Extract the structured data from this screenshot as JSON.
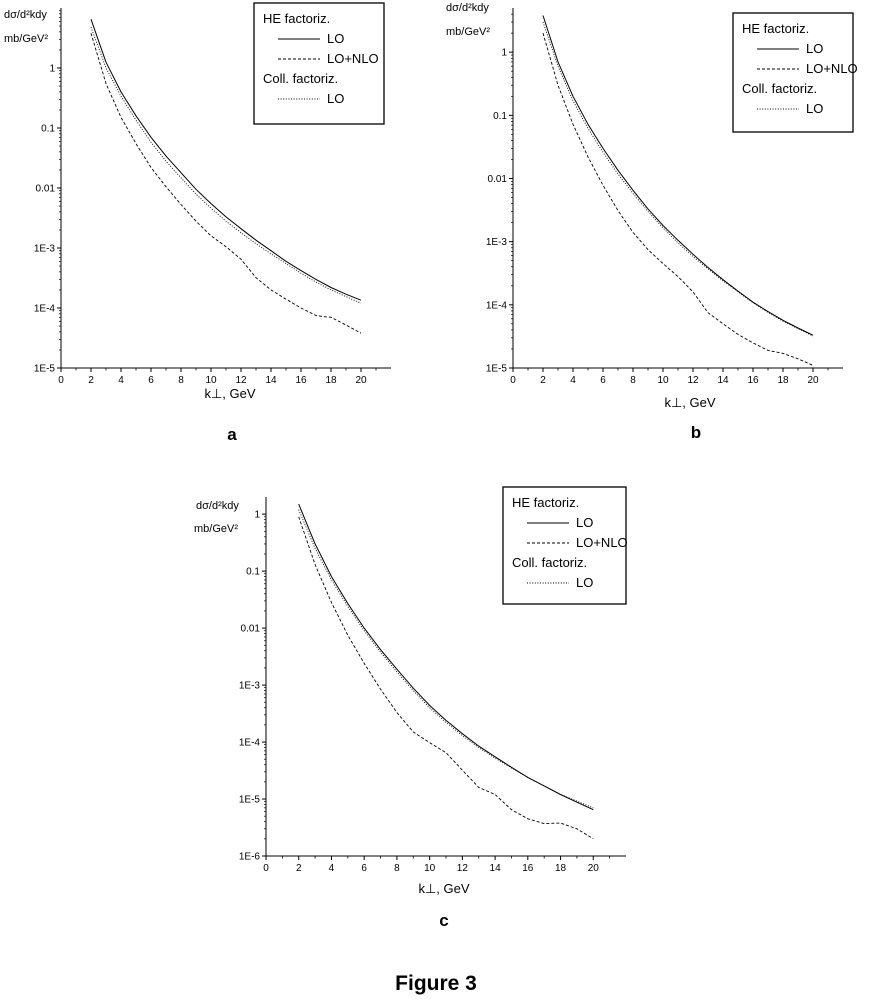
{
  "caption": "Figure 3",
  "chart_data": [
    {
      "panel_label": "a",
      "type": "line",
      "yscale": "log",
      "xlabel": "k⊥, GeV",
      "ylabel": [
        "dσ/d²kdy",
        "mb/GeV²"
      ],
      "xlim": [
        0,
        22
      ],
      "xticks": [
        0,
        2,
        4,
        6,
        8,
        10,
        12,
        14,
        16,
        18,
        20
      ],
      "ylim": [
        1e-05,
        10
      ],
      "yticks": [
        1e-05,
        0.0001,
        0.001,
        0.01,
        0.1,
        1
      ],
      "ytick_labels": [
        "1E-5",
        "1E-4",
        "1E-3",
        "0.01",
        "0.1",
        "1"
      ],
      "legend": {
        "position": "top-right",
        "groups": [
          {
            "title": "HE factoriz.",
            "entries": [
              "LO",
              "LO+NLO"
            ]
          },
          {
            "title": "Coll. factoriz.",
            "entries": [
              "LO"
            ]
          }
        ]
      },
      "series": [
        {
          "name": "HE factoriz. LO",
          "style": "solid",
          "x": [
            2,
            3,
            4,
            5,
            6,
            7,
            8,
            9,
            10,
            11,
            12,
            13,
            14,
            15,
            16,
            17,
            18,
            19,
            20
          ],
          "y": [
            6.5,
            1.25,
            0.4,
            0.16,
            0.07,
            0.034,
            0.018,
            0.0095,
            0.0055,
            0.0033,
            0.0021,
            0.00135,
            0.0009,
            0.0006,
            0.00042,
            0.0003,
            0.00022,
            0.00017,
            0.000135
          ]
        },
        {
          "name": "HE factoriz. LO+NLO",
          "style": "dashed",
          "x": [
            2,
            3,
            4,
            5,
            6,
            7,
            8,
            9,
            10,
            11,
            12,
            13,
            14,
            15,
            16,
            17,
            17.5,
            18,
            19,
            20
          ],
          "y": [
            3.8,
            0.55,
            0.15,
            0.055,
            0.022,
            0.0105,
            0.0053,
            0.0028,
            0.0016,
            0.00105,
            0.00065,
            0.00032,
            0.0002,
            0.00014,
            0.0001,
            7.5e-05,
            7.2e-05,
            7e-05,
            5.2e-05,
            3.8e-05
          ]
        },
        {
          "name": "Coll. factoriz. LO",
          "style": "dotted",
          "x": [
            2,
            3,
            4,
            5,
            6,
            7,
            8,
            9,
            10,
            11,
            12,
            13,
            14,
            15,
            16,
            17,
            18,
            19,
            20
          ],
          "y": [
            4.8,
            1.0,
            0.34,
            0.135,
            0.058,
            0.028,
            0.0148,
            0.0079,
            0.0046,
            0.0028,
            0.0018,
            0.00118,
            0.0008,
            0.00055,
            0.00038,
            0.00027,
            0.0002,
            0.000155,
            0.00012
          ]
        }
      ]
    },
    {
      "panel_label": "b",
      "type": "line",
      "yscale": "log",
      "xlabel": "k⊥, GeV",
      "ylabel": [
        "dσ/d²kdy",
        "mb/GeV²"
      ],
      "xlim": [
        0,
        22
      ],
      "xticks": [
        0,
        2,
        4,
        6,
        8,
        10,
        12,
        14,
        16,
        18,
        20
      ],
      "ylim": [
        1e-05,
        5
      ],
      "yticks": [
        1e-05,
        0.0001,
        0.001,
        0.01,
        0.1,
        1
      ],
      "ytick_labels": [
        "1E-5",
        "1E-4",
        "1E-3",
        "0.01",
        "0.1",
        "1"
      ],
      "legend": {
        "position": "top-right",
        "groups": [
          {
            "title": "HE factoriz.",
            "entries": [
              "LO",
              "LO+NLO"
            ]
          },
          {
            "title": "Coll. factoriz.",
            "entries": [
              "LO"
            ]
          }
        ]
      },
      "series": [
        {
          "name": "HE factoriz. LO",
          "style": "solid",
          "x": [
            2,
            3,
            4,
            5,
            6,
            7,
            8,
            9,
            10,
            11,
            12,
            13,
            14,
            15,
            16,
            17,
            18,
            19,
            20
          ],
          "y": [
            3.8,
            0.7,
            0.2,
            0.072,
            0.03,
            0.0135,
            0.0065,
            0.0033,
            0.0018,
            0.00105,
            0.00063,
            0.00039,
            0.00025,
            0.000165,
            0.00011,
            7.8e-05,
            5.7e-05,
            4.3e-05,
            3.3e-05
          ]
        },
        {
          "name": "HE factoriz. LO+NLO",
          "style": "dashed",
          "x": [
            2,
            3,
            4,
            5,
            6,
            7,
            8,
            9,
            10,
            11,
            12,
            13,
            14,
            15,
            16,
            17,
            18,
            19,
            20
          ],
          "y": [
            2.0,
            0.3,
            0.072,
            0.022,
            0.0078,
            0.0031,
            0.0014,
            0.00075,
            0.00045,
            0.00028,
            0.00016,
            7.5e-05,
            5e-05,
            3.4e-05,
            2.5e-05,
            1.9e-05,
            1.7e-05,
            1.4e-05,
            1.1e-05
          ]
        },
        {
          "name": "Coll. factoriz. LO",
          "style": "dotted",
          "x": [
            2,
            3,
            4,
            5,
            6,
            7,
            8,
            9,
            10,
            11,
            12,
            13,
            14,
            15,
            16,
            17,
            18,
            19,
            20
          ],
          "y": [
            3.0,
            0.6,
            0.17,
            0.062,
            0.026,
            0.0118,
            0.0058,
            0.003,
            0.00165,
            0.00096,
            0.00058,
            0.00037,
            0.00024,
            0.00016,
            0.000108,
            7.6e-05,
            5.5e-05,
            4.2e-05,
            3.2e-05
          ]
        }
      ]
    },
    {
      "panel_label": "c",
      "type": "line",
      "yscale": "log",
      "xlabel": "k⊥, GeV",
      "ylabel": [
        "dσ/d²kdy",
        "mb/GeV²"
      ],
      "xlim": [
        0,
        22
      ],
      "xticks": [
        0,
        2,
        4,
        6,
        8,
        10,
        12,
        14,
        16,
        18,
        20
      ],
      "ylim": [
        1e-06,
        2
      ],
      "yticks": [
        1e-06,
        1e-05,
        0.0001,
        0.001,
        0.01,
        0.1,
        1
      ],
      "ytick_labels": [
        "1E-6",
        "1E-5",
        "1E-4",
        "1E-3",
        "0.01",
        "0.1",
        "1"
      ],
      "legend": {
        "position": "top-right",
        "groups": [
          {
            "title": "HE factoriz.",
            "entries": [
              "LO",
              "LO+NLO"
            ]
          },
          {
            "title": "Coll. factoriz.",
            "entries": [
              "LO"
            ]
          }
        ]
      },
      "series": [
        {
          "name": "HE factoriz. LO",
          "style": "solid",
          "x": [
            2,
            3,
            4,
            5,
            6,
            7,
            8,
            9,
            10,
            11,
            12,
            13,
            14,
            15,
            16,
            17,
            18,
            19,
            20
          ],
          "y": [
            1.5,
            0.3,
            0.08,
            0.027,
            0.01,
            0.0042,
            0.0019,
            0.00088,
            0.00044,
            0.00024,
            0.00014,
            8.5e-05,
            5.5e-05,
            3.6e-05,
            2.4e-05,
            1.7e-05,
            1.2e-05,
            8.8e-06,
            6.5e-06
          ]
        },
        {
          "name": "HE factoriz. LO+NLO",
          "style": "dashed",
          "x": [
            2,
            3,
            4,
            5,
            6,
            7,
            8,
            9,
            10,
            11,
            12,
            13,
            14,
            15,
            16,
            17,
            18,
            19,
            20
          ],
          "y": [
            0.9,
            0.13,
            0.028,
            0.0075,
            0.0024,
            0.00085,
            0.00033,
            0.00015,
            9.8e-05,
            6.5e-05,
            3.2e-05,
            1.6e-05,
            1.2e-05,
            6.5e-06,
            4.5e-06,
            3.7e-06,
            3.8e-06,
            3e-06,
            2e-06
          ]
        },
        {
          "name": "Coll. factoriz. LO",
          "style": "dotted",
          "x": [
            2,
            3,
            4,
            5,
            6,
            7,
            8,
            9,
            10,
            11,
            12,
            13,
            14,
            15,
            16,
            17,
            18,
            19,
            20
          ],
          "y": [
            1.2,
            0.25,
            0.07,
            0.024,
            0.009,
            0.0038,
            0.0017,
            0.0008,
            0.0004,
            0.00022,
            0.00013,
            8e-05,
            5.2e-05,
            3.5e-05,
            2.4e-05,
            1.7e-05,
            1.2e-05,
            9.2e-06,
            7e-06
          ]
        }
      ]
    }
  ]
}
